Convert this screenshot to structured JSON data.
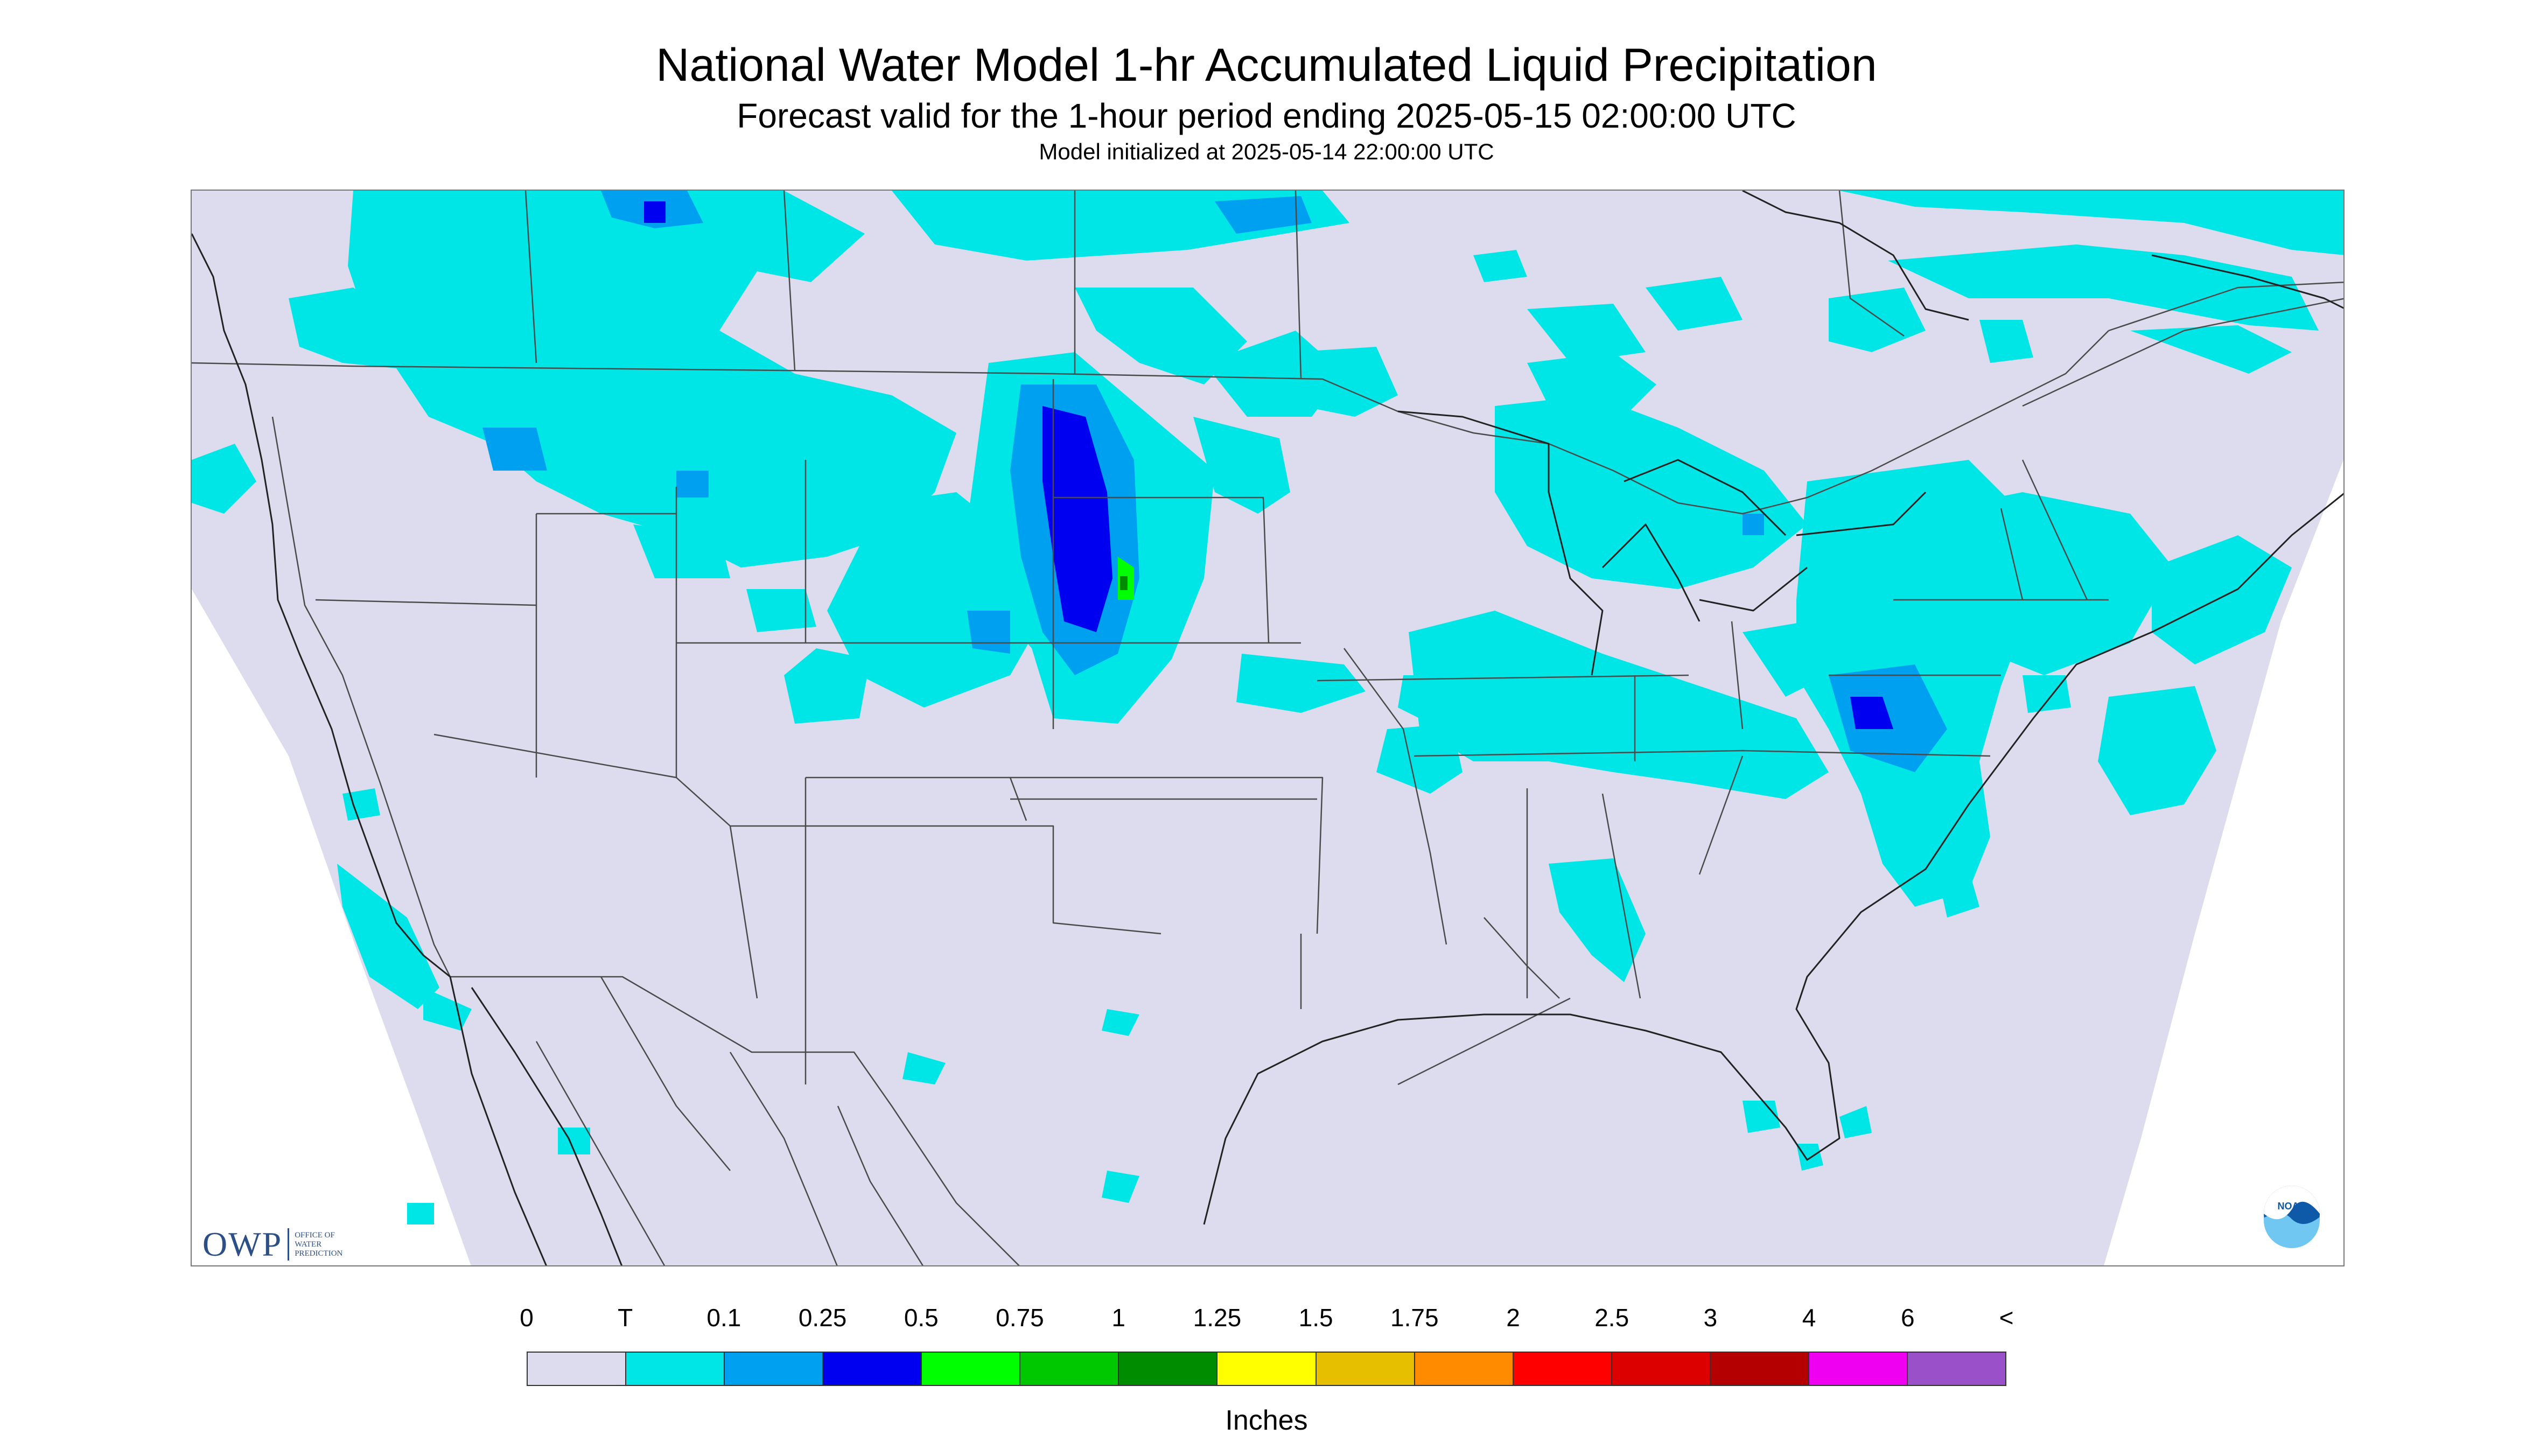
{
  "header": {
    "title": "National Water Model 1-hr Accumulated Liquid Precipitation",
    "subtitle": "Forecast valid for the 1-hour period ending 2025-05-15 02:00:00 UTC",
    "init": "Model initialized at 2025-05-14 22:00:00 UTC"
  },
  "logos": {
    "owp_word": "OWP",
    "owp_full": "OFFICE OF\nWATER\nPREDICTION",
    "noaa_word": "NOAA"
  },
  "legend": {
    "units": "Inches",
    "ticks": [
      "0",
      "T",
      "0.1",
      "0.25",
      "0.5",
      "0.75",
      "1",
      "1.25",
      "1.5",
      "1.75",
      "2",
      "2.5",
      "3",
      "4",
      "6",
      "<"
    ],
    "colors": [
      "#dcdcee",
      "#00e6e6",
      "#00a0f0",
      "#0000f0",
      "#00ff00",
      "#00c800",
      "#008c00",
      "#ffff00",
      "#e6c000",
      "#ff8c00",
      "#ff0000",
      "#dc0000",
      "#b40000",
      "#f000f0",
      "#9a50c8"
    ]
  },
  "map_style": {
    "domain_fill": "#dcdcee",
    "outside_fill": "#ffffff",
    "border_color": "#4a4a4a",
    "coast_color": "#222222"
  }
}
